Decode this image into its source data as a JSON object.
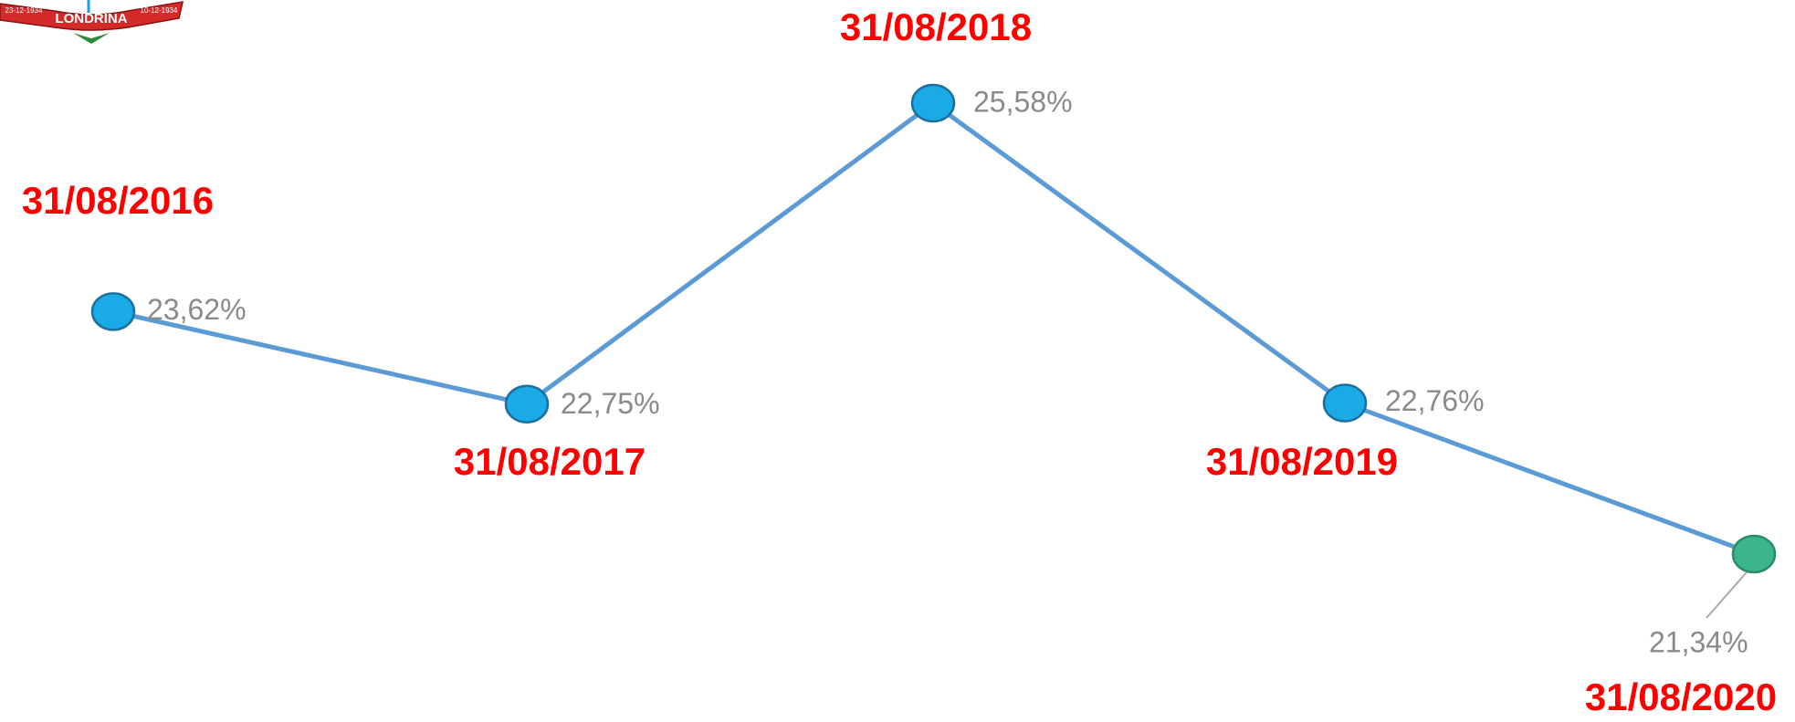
{
  "logo": {
    "name": "LONDRINA",
    "left_date": "23-12-1934",
    "right_date": "10-12-1934"
  },
  "chart_data": {
    "type": "line",
    "categories": [
      "31/08/2016",
      "31/08/2017",
      "31/08/2018",
      "31/08/2019",
      "31/08/2020"
    ],
    "values": [
      23.62,
      22.75,
      25.58,
      22.76,
      21.34
    ],
    "value_labels": [
      "23,62%",
      "22,75%",
      "25,58%",
      "22,76%",
      "21,34%"
    ],
    "color": "#5b9bd5",
    "marker_colors": [
      "#1aabe6",
      "#1aabe6",
      "#1aabe6",
      "#1aabe6",
      "#3cb58f"
    ],
    "category_label_color": "#ff0000"
  }
}
